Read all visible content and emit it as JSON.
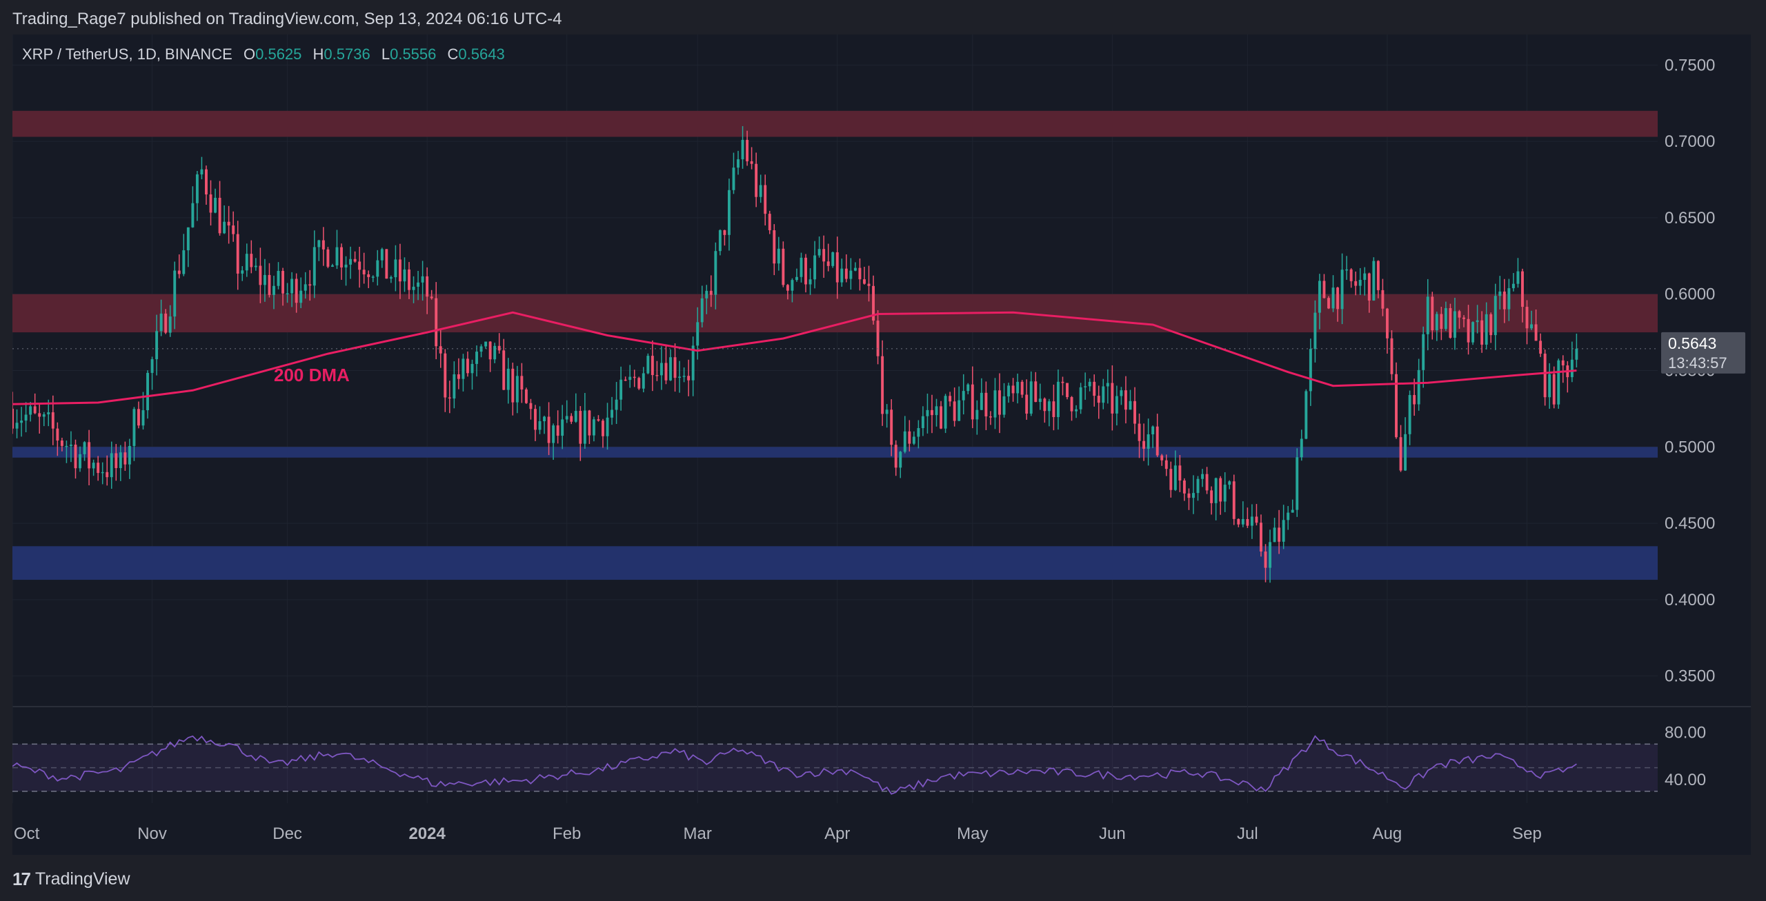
{
  "header": {
    "publisher": "Trading_Rage7 published on TradingView.com, Sep 13, 2024 06:16 UTC-4"
  },
  "symbol": {
    "name": "XRP / TetherUS, 1D, BINANCE",
    "open_label": "O",
    "open": "0.5625",
    "high_label": "H",
    "high": "0.5736",
    "low_label": "L",
    "low": "0.5556",
    "close_label": "C",
    "close": "0.5643"
  },
  "price_badge": {
    "value": "0.5643",
    "countdown": "13:43:57"
  },
  "footer": {
    "brand": "TradingView",
    "logo_mark": "17"
  },
  "colors": {
    "background": "#161a25",
    "up": "#26a69a",
    "down": "#ef5370",
    "dma": "#e91e63",
    "resistance_zone": "#5c2433",
    "support_zone": "#243470",
    "rsi": "#7e57c2"
  },
  "chart_data": [
    {
      "type": "candlestick",
      "title": "",
      "ylabel": "",
      "ylim": [
        0.33,
        0.77
      ],
      "y_ticks": [
        "0.7500",
        "0.7000",
        "0.6500",
        "0.6000",
        "0.5500",
        "0.5000",
        "0.4500",
        "0.4000",
        "0.3500"
      ],
      "x_ticks": [
        "Oct",
        "Nov",
        "Dec",
        "2024",
        "Feb",
        "Mar",
        "Apr",
        "May",
        "Jun",
        "Jul",
        "Aug",
        "Sep"
      ],
      "x_tick_dates": [
        "2023-10-01",
        "2023-11-01",
        "2023-12-01",
        "2024-01-01",
        "2024-02-01",
        "2024-03-01",
        "2024-04-01",
        "2024-05-01",
        "2024-06-01",
        "2024-07-01",
        "2024-08-01",
        "2024-09-01"
      ],
      "x_range": [
        "2023-10-01",
        "2024-09-30"
      ],
      "last_close": 0.5643,
      "zones": [
        {
          "kind": "resistance",
          "low": 0.703,
          "high": 0.72
        },
        {
          "kind": "resistance",
          "low": 0.575,
          "high": 0.6
        },
        {
          "kind": "support",
          "low": 0.493,
          "high": 0.5
        },
        {
          "kind": "support",
          "low": 0.413,
          "high": 0.435
        }
      ],
      "series": [
        {
          "name": "200 DMA",
          "type": "line",
          "dates": [
            "2023-10-01",
            "2023-10-20",
            "2023-11-10",
            "2023-12-10",
            "2024-01-01",
            "2024-01-20",
            "2024-02-10",
            "2024-03-01",
            "2024-03-20",
            "2024-04-10",
            "2024-05-10",
            "2024-06-10",
            "2024-07-10",
            "2024-07-20",
            "2024-08-10",
            "2024-08-30",
            "2024-09-12"
          ],
          "values": [
            0.528,
            0.529,
            0.537,
            0.561,
            0.575,
            0.588,
            0.573,
            0.563,
            0.571,
            0.587,
            0.588,
            0.58,
            0.549,
            0.54,
            0.542,
            0.547,
            0.55
          ]
        },
        {
          "name": "XRP/USDT",
          "type": "candlestick",
          "close_path_dates": [
            "2023-10-01",
            "2023-10-10",
            "2023-10-18",
            "2023-10-25",
            "2023-11-01",
            "2023-11-07",
            "2023-11-12",
            "2023-11-20",
            "2023-12-01",
            "2023-12-10",
            "2023-12-20",
            "2024-01-01",
            "2024-01-05",
            "2024-01-15",
            "2024-01-28",
            "2024-02-10",
            "2024-02-20",
            "2024-02-28",
            "2024-03-05",
            "2024-03-11",
            "2024-03-20",
            "2024-03-28",
            "2024-04-08",
            "2024-04-13",
            "2024-04-20",
            "2024-05-01",
            "2024-05-15",
            "2024-05-25",
            "2024-06-05",
            "2024-06-15",
            "2024-06-25",
            "2024-07-05",
            "2024-07-10",
            "2024-07-17",
            "2024-07-30",
            "2024-08-04",
            "2024-08-10",
            "2024-08-20",
            "2024-08-30",
            "2024-09-06",
            "2024-09-12"
          ],
          "close_path_values": [
            0.525,
            0.51,
            0.49,
            0.485,
            0.555,
            0.62,
            0.68,
            0.62,
            0.6,
            0.63,
            0.62,
            0.6,
            0.54,
            0.56,
            0.505,
            0.52,
            0.56,
            0.55,
            0.62,
            0.7,
            0.61,
            0.62,
            0.6,
            0.49,
            0.52,
            0.53,
            0.53,
            0.535,
            0.525,
            0.48,
            0.475,
            0.43,
            0.45,
            0.6,
            0.61,
            0.49,
            0.59,
            0.57,
            0.605,
            0.535,
            0.5643
          ]
        }
      ]
    },
    {
      "type": "line",
      "title": "",
      "ylabel": "",
      "ylim": [
        20,
        100
      ],
      "y_ticks": [
        "80.00",
        "40.00"
      ],
      "bands": {
        "upper": 70,
        "middle": 50,
        "lower": 30
      },
      "series": [
        {
          "name": "",
          "dates": [
            "2023-10-01",
            "2023-10-12",
            "2023-10-25",
            "2023-11-03",
            "2023-11-10",
            "2023-11-18",
            "2023-11-28",
            "2023-12-12",
            "2024-01-03",
            "2024-01-22",
            "2024-02-08",
            "2024-02-25",
            "2024-03-03",
            "2024-03-10",
            "2024-03-22",
            "2024-04-05",
            "2024-04-13",
            "2024-04-25",
            "2024-05-15",
            "2024-06-05",
            "2024-06-20",
            "2024-07-05",
            "2024-07-16",
            "2024-07-20",
            "2024-08-05",
            "2024-08-12",
            "2024-08-25",
            "2024-09-05",
            "2024-09-12"
          ],
          "values": [
            52,
            41,
            48,
            65,
            77,
            70,
            52,
            63,
            36,
            39,
            48,
            64,
            54,
            66,
            45,
            48,
            28,
            43,
            47,
            43,
            46,
            32,
            75,
            66,
            34,
            52,
            60,
            43,
            51
          ]
        }
      ]
    }
  ]
}
